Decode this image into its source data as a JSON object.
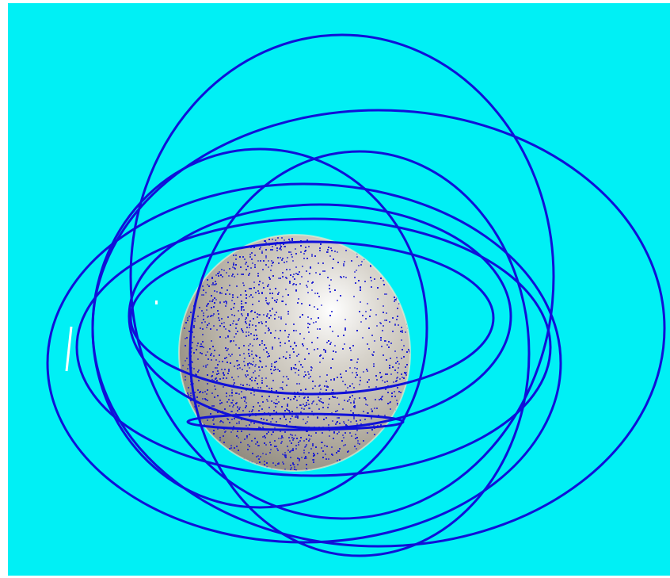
{
  "scene": {
    "background_color": "#00f0f5",
    "frame_color": "#ffffff",
    "orbit_color": "#1010d8",
    "sphere": {
      "highlight_color": "#ffffff",
      "mid_color": "#d8d4cc",
      "shadow_color": "#8a8478",
      "speckle_color": "#1a1ad0",
      "rim_color": "#f8f0d0"
    }
  }
}
